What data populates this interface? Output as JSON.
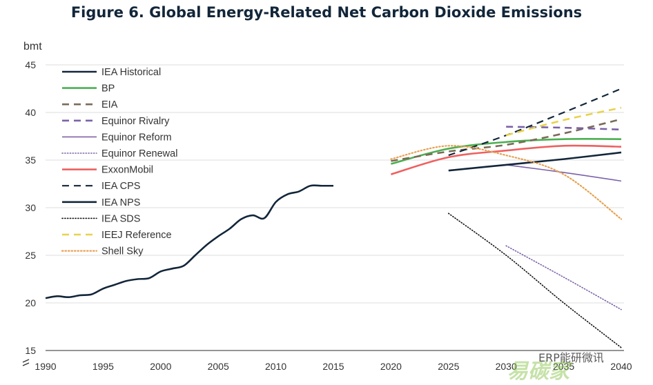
{
  "chart_data": {
    "type": "line",
    "title": "Figure 6. Global Energy-Related Net Carbon Dioxide Emissions",
    "ylabel": "bmt",
    "xlabel": "",
    "xlim": [
      1990,
      2040
    ],
    "ylim": [
      15,
      45
    ],
    "x_ticks": [
      1990,
      1995,
      2000,
      2005,
      2010,
      2015,
      2020,
      2025,
      2030,
      2035,
      2040
    ],
    "y_ticks": [
      15,
      20,
      25,
      30,
      35,
      40,
      45
    ],
    "grid": "horizontal",
    "legend_position": "top-left",
    "series": [
      {
        "name": "IEA Historical",
        "color": "#12263a",
        "style": "solid",
        "width": 2.6,
        "x": [
          1990,
          1991,
          1992,
          1993,
          1994,
          1995,
          1996,
          1997,
          1998,
          1999,
          2000,
          2001,
          2002,
          2003,
          2004,
          2005,
          2006,
          2007,
          2008,
          2009,
          2010,
          2011,
          2012,
          2013,
          2014,
          2015
        ],
        "y": [
          20.5,
          20.7,
          20.6,
          20.8,
          20.9,
          21.5,
          21.9,
          22.3,
          22.5,
          22.6,
          23.3,
          23.6,
          23.9,
          25.0,
          26.1,
          27.0,
          27.8,
          28.8,
          29.2,
          28.9,
          30.6,
          31.4,
          31.7,
          32.3,
          32.3,
          32.3
        ]
      },
      {
        "name": "BP",
        "color": "#4caf50",
        "style": "solid",
        "width": 2.6,
        "x": [
          2020,
          2025,
          2030,
          2035,
          2040
        ],
        "y": [
          34.6,
          36.2,
          36.9,
          37.2,
          37.2
        ]
      },
      {
        "name": "EIA",
        "color": "#7a6a58",
        "style": "dashed",
        "width": 2.6,
        "x": [
          2020,
          2025,
          2030,
          2035,
          2040
        ],
        "y": [
          34.9,
          35.9,
          36.6,
          37.8,
          39.3
        ]
      },
      {
        "name": "Equinor Rivalry",
        "color": "#7b61a8",
        "style": "dashed",
        "width": 2.6,
        "x": [
          2030,
          2035,
          2040
        ],
        "y": [
          38.5,
          38.4,
          38.2
        ]
      },
      {
        "name": "Equinor Reform",
        "color": "#7b61a8",
        "style": "solid",
        "width": 1.6,
        "x": [
          2030,
          2035,
          2040
        ],
        "y": [
          34.5,
          33.7,
          32.8
        ]
      },
      {
        "name": "Equinor Renewal",
        "color": "#7b61a8",
        "style": "dotted",
        "width": 1.6,
        "x": [
          2030,
          2035,
          2040
        ],
        "y": [
          26.0,
          22.7,
          19.3
        ]
      },
      {
        "name": "ExxonMobil",
        "color": "#ee6060",
        "style": "solid",
        "width": 2.6,
        "x": [
          2020,
          2025,
          2030,
          2035,
          2040
        ],
        "y": [
          33.5,
          35.3,
          36.0,
          36.5,
          36.4
        ]
      },
      {
        "name": "IEA CPS",
        "color": "#12263a",
        "style": "dashed",
        "width": 2.2,
        "x": [
          2025,
          2030,
          2035,
          2040
        ],
        "y": [
          35.5,
          37.6,
          40.0,
          42.5
        ]
      },
      {
        "name": "IEA NPS",
        "color": "#12263a",
        "style": "solid",
        "width": 2.6,
        "x": [
          2025,
          2030,
          2035,
          2040
        ],
        "y": [
          33.9,
          34.5,
          35.1,
          35.8
        ]
      },
      {
        "name": "IEA SDS",
        "color": "#111111",
        "style": "dotted",
        "width": 1.6,
        "x": [
          2025,
          2030,
          2035,
          2040
        ],
        "y": [
          29.4,
          25.0,
          20.0,
          15.3
        ]
      },
      {
        "name": "IEEJ Reference",
        "color": "#e8d24a",
        "style": "dashed",
        "width": 2.6,
        "x": [
          2030,
          2035,
          2040
        ],
        "y": [
          37.6,
          39.2,
          40.5
        ]
      },
      {
        "name": "Shell Sky",
        "color": "#e8a050",
        "style": "dotted",
        "width": 2.2,
        "x": [
          2020,
          2025,
          2030,
          2035,
          2040
        ],
        "y": [
          35.1,
          36.5,
          35.5,
          33.5,
          28.8
        ]
      }
    ]
  },
  "watermark": {
    "text": "ERP能研微讯",
    "logo_text": "易碳家"
  }
}
